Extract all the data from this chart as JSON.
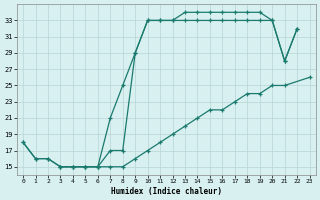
{
  "line1_x": [
    0,
    1,
    2,
    3,
    4,
    5,
    6,
    7,
    8,
    9,
    10,
    11,
    12,
    13,
    14,
    15,
    16,
    17,
    18,
    19,
    20,
    21,
    22
  ],
  "line1_y": [
    18,
    16,
    16,
    15,
    15,
    15,
    15,
    17,
    17,
    29,
    33,
    33,
    33,
    34,
    34,
    34,
    34,
    34,
    34,
    34,
    33,
    28,
    32
  ],
  "line2_x": [
    3,
    4,
    5,
    6,
    7,
    8,
    9,
    10,
    11,
    12,
    13,
    14,
    15,
    16,
    17,
    18,
    19,
    20,
    21,
    22
  ],
  "line2_y": [
    15,
    15,
    15,
    15,
    21,
    25,
    29,
    33,
    33,
    33,
    33,
    33,
    33,
    33,
    33,
    33,
    33,
    33,
    28,
    32
  ],
  "line3_x": [
    0,
    1,
    2,
    3,
    4,
    5,
    6,
    7,
    8,
    9,
    10,
    11,
    12,
    13,
    14,
    15,
    16,
    17,
    18,
    19,
    20,
    21,
    23
  ],
  "line3_y": [
    18,
    16,
    16,
    15,
    15,
    15,
    15,
    15,
    15,
    16,
    17,
    18,
    19,
    20,
    21,
    22,
    22,
    23,
    24,
    24,
    25,
    25,
    26
  ],
  "xlabel": "Humidex (Indice chaleur)",
  "xlim": [
    -0.5,
    23.5
  ],
  "ylim": [
    14,
    35
  ],
  "yticks": [
    15,
    17,
    19,
    21,
    23,
    25,
    27,
    29,
    31,
    33
  ],
  "xticks": [
    0,
    1,
    2,
    3,
    4,
    5,
    6,
    7,
    8,
    9,
    10,
    11,
    12,
    13,
    14,
    15,
    16,
    17,
    18,
    19,
    20,
    21,
    22,
    23
  ],
  "line_color": "#1a7a6e",
  "bg_color": "#d8f0f0",
  "grid_color": "#b8d4d4"
}
